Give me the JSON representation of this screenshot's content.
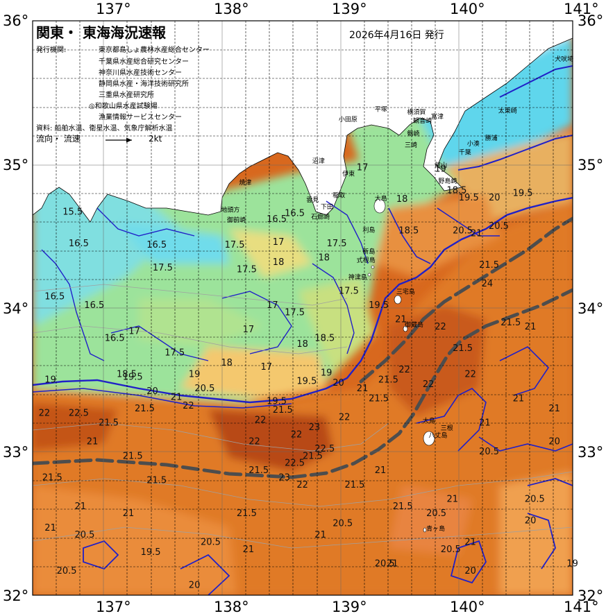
{
  "title": "関東・ 東海海況速報",
  "issue_date": "2026年4月16日 発行",
  "agencies_label": "発行機関:",
  "agencies": [
    "東京都島しょ農林水産総合センター",
    "千葉県水産総合研究センター",
    "神奈川県水産技術センター",
    "静岡県水産・海洋技術研究所",
    "三重県水産研究所",
    "◎和歌山県水産試験場",
    "漁業情報サービスセンター"
  ],
  "sources": "資料: 船舶水温、衛星水温、気象庁解析水温",
  "flow_label": "流向・ 流速",
  "flow_scale": "2kt",
  "lon_labels": [
    "137°",
    "138°",
    "139°",
    "140°",
    "141°"
  ],
  "lat_labels": [
    "36°",
    "35°",
    "34°",
    "33°",
    "32°"
  ],
  "places": [
    {
      "name": "犬吠埼",
      "lon": 140.85,
      "lat": 35.72
    },
    {
      "name": "太東崎",
      "lon": 140.38,
      "lat": 35.36
    },
    {
      "name": "勝浦",
      "lon": 140.27,
      "lat": 35.17
    },
    {
      "name": "小湊",
      "lon": 140.12,
      "lat": 35.13
    },
    {
      "name": "富津",
      "lon": 139.82,
      "lat": 35.32
    },
    {
      "name": "千葉",
      "lon": 140.05,
      "lat": 35.07
    },
    {
      "name": "館山",
      "lon": 139.85,
      "lat": 34.98
    },
    {
      "name": "野島崎",
      "lon": 139.88,
      "lat": 34.87
    },
    {
      "name": "横須賀",
      "lon": 139.62,
      "lat": 35.35
    },
    {
      "name": "観音崎",
      "lon": 139.67,
      "lat": 35.29
    },
    {
      "name": "剱崎",
      "lon": 139.62,
      "lat": 35.2
    },
    {
      "name": "三崎",
      "lon": 139.6,
      "lat": 35.12
    },
    {
      "name": "平塚",
      "lon": 139.35,
      "lat": 35.37
    },
    {
      "name": "小田原",
      "lon": 139.05,
      "lat": 35.3
    },
    {
      "name": "伊東",
      "lon": 139.08,
      "lat": 34.92
    },
    {
      "name": "稲取",
      "lon": 139.0,
      "lat": 34.77
    },
    {
      "name": "下田",
      "lon": 138.9,
      "lat": 34.69
    },
    {
      "name": "雲見",
      "lon": 138.78,
      "lat": 34.74
    },
    {
      "name": "石廊崎",
      "lon": 138.82,
      "lat": 34.62
    },
    {
      "name": "大島",
      "lon": 139.35,
      "lat": 34.75
    },
    {
      "name": "沼津",
      "lon": 138.83,
      "lat": 35.01
    },
    {
      "name": "焼津",
      "lon": 138.22,
      "lat": 34.86
    },
    {
      "name": "地頭方",
      "lon": 138.07,
      "lat": 34.67
    },
    {
      "name": "御前崎",
      "lon": 138.12,
      "lat": 34.6
    },
    {
      "name": "利島",
      "lon": 139.25,
      "lat": 34.53
    },
    {
      "name": "新島",
      "lon": 139.25,
      "lat": 34.38
    },
    {
      "name": "式根島",
      "lon": 139.2,
      "lat": 34.32
    },
    {
      "name": "神津島",
      "lon": 139.13,
      "lat": 34.2
    },
    {
      "name": "三宅島",
      "lon": 139.53,
      "lat": 34.1
    },
    {
      "name": "御蔵島",
      "lon": 139.6,
      "lat": 33.87
    },
    {
      "name": "八丈島",
      "lon": 139.8,
      "lat": 33.1
    },
    {
      "name": "大鳥",
      "lon": 139.75,
      "lat": 33.2
    },
    {
      "name": "三根",
      "lon": 139.9,
      "lat": 33.15
    },
    {
      "name": "青ヶ島",
      "lon": 139.78,
      "lat": 32.45
    }
  ],
  "contour_labels": [
    {
      "t": "15.5",
      "lon": 136.75,
      "lat": 34.65
    },
    {
      "t": "16.5",
      "lon": 136.6,
      "lat": 34.06
    },
    {
      "t": "16.5",
      "lon": 136.8,
      "lat": 34.43
    },
    {
      "t": "16.5",
      "lon": 136.93,
      "lat": 34.0
    },
    {
      "t": "16.5",
      "lon": 137.45,
      "lat": 34.42
    },
    {
      "t": "17",
      "lon": 137.3,
      "lat": 33.82
    },
    {
      "t": "16.5",
      "lon": 137.1,
      "lat": 33.77
    },
    {
      "t": "17.5",
      "lon": 137.5,
      "lat": 34.26
    },
    {
      "t": "17.5",
      "lon": 138.1,
      "lat": 34.42
    },
    {
      "t": "17.5",
      "lon": 138.2,
      "lat": 34.25
    },
    {
      "t": "17",
      "lon": 138.25,
      "lat": 33.83
    },
    {
      "t": "17",
      "lon": 138.45,
      "lat": 34.0
    },
    {
      "t": "17.5",
      "lon": 138.6,
      "lat": 33.95
    },
    {
      "t": "18",
      "lon": 138.5,
      "lat": 34.3
    },
    {
      "t": "17",
      "lon": 138.5,
      "lat": 34.44
    },
    {
      "t": "16.5",
      "lon": 138.45,
      "lat": 34.6
    },
    {
      "t": "16.5",
      "lon": 138.6,
      "lat": 34.64
    },
    {
      "t": "17.5",
      "lon": 138.95,
      "lat": 34.43
    },
    {
      "t": "18",
      "lon": 138.88,
      "lat": 34.33
    },
    {
      "t": "17.5",
      "lon": 139.05,
      "lat": 34.1
    },
    {
      "t": "17",
      "lon": 139.2,
      "lat": 34.96
    },
    {
      "t": "18",
      "lon": 139.53,
      "lat": 34.74
    },
    {
      "t": "18.5",
      "lon": 139.55,
      "lat": 34.52
    },
    {
      "t": "18",
      "lon": 138.7,
      "lat": 33.73
    },
    {
      "t": "18.5",
      "lon": 138.85,
      "lat": 33.77
    },
    {
      "t": "17.5",
      "lon": 137.6,
      "lat": 33.67
    },
    {
      "t": "18",
      "lon": 138.07,
      "lat": 33.6
    },
    {
      "t": "17",
      "lon": 138.4,
      "lat": 33.57
    },
    {
      "t": "18.5",
      "lon": 137.2,
      "lat": 33.52
    },
    {
      "t": "19.5",
      "lon": 137.25,
      "lat": 33.5
    },
    {
      "t": "19",
      "lon": 137.8,
      "lat": 33.52
    },
    {
      "t": "19.5",
      "lon": 138.7,
      "lat": 33.47
    },
    {
      "t": "19",
      "lon": 138.9,
      "lat": 33.53
    },
    {
      "t": "20",
      "lon": 139.0,
      "lat": 33.46
    },
    {
      "t": "19.5",
      "lon": 139.3,
      "lat": 34.0
    },
    {
      "t": "19",
      "lon": 136.6,
      "lat": 33.48
    },
    {
      "t": "20",
      "lon": 137.45,
      "lat": 33.4
    },
    {
      "t": "20.5",
      "lon": 137.85,
      "lat": 33.42
    },
    {
      "t": "21",
      "lon": 137.65,
      "lat": 33.36
    },
    {
      "t": "22",
      "lon": 137.75,
      "lat": 33.3
    },
    {
      "t": "21.5",
      "lon": 137.35,
      "lat": 33.28
    },
    {
      "t": "22",
      "lon": 136.55,
      "lat": 33.25
    },
    {
      "t": "22.5",
      "lon": 136.8,
      "lat": 33.25
    },
    {
      "t": "21.5",
      "lon": 137.05,
      "lat": 33.18
    },
    {
      "t": "19.5",
      "lon": 138.45,
      "lat": 33.33
    },
    {
      "t": "21.5",
      "lon": 138.5,
      "lat": 33.27
    },
    {
      "t": "22",
      "lon": 138.35,
      "lat": 33.2
    },
    {
      "t": "22",
      "lon": 138.3,
      "lat": 33.05
    },
    {
      "t": "23",
      "lon": 138.8,
      "lat": 33.15
    },
    {
      "t": "22",
      "lon": 139.05,
      "lat": 33.22
    },
    {
      "t": "21.5",
      "lon": 139.3,
      "lat": 33.35
    },
    {
      "t": "21",
      "lon": 139.2,
      "lat": 33.42
    },
    {
      "t": "21.5",
      "lon": 139.38,
      "lat": 33.48
    },
    {
      "t": "22",
      "lon": 139.55,
      "lat": 33.55
    },
    {
      "t": "21",
      "lon": 139.52,
      "lat": 33.9
    },
    {
      "t": "22",
      "lon": 139.85,
      "lat": 33.85
    },
    {
      "t": "22",
      "lon": 139.75,
      "lat": 33.45
    },
    {
      "t": "22",
      "lon": 140.1,
      "lat": 33.52
    },
    {
      "t": "21.5",
      "lon": 140.0,
      "lat": 33.7
    },
    {
      "t": "24",
      "lon": 140.24,
      "lat": 34.15
    },
    {
      "t": "21.5",
      "lon": 140.22,
      "lat": 34.28
    },
    {
      "t": "20.5",
      "lon": 140.0,
      "lat": 34.52
    },
    {
      "t": "21",
      "lon": 140.15,
      "lat": 34.5
    },
    {
      "t": "21.5",
      "lon": 140.4,
      "lat": 33.88
    },
    {
      "t": "21",
      "lon": 140.5,
      "lat": 33.35
    },
    {
      "t": "21",
      "lon": 140.6,
      "lat": 33.85
    },
    {
      "t": "21",
      "lon": 140.8,
      "lat": 33.28
    },
    {
      "t": "20",
      "lon": 140.8,
      "lat": 33.05
    },
    {
      "t": "20.5",
      "lon": 140.22,
      "lat": 32.98
    },
    {
      "t": "21",
      "lon": 140.22,
      "lat": 33.18
    },
    {
      "t": "20.5",
      "lon": 140.6,
      "lat": 32.65
    },
    {
      "t": "20",
      "lon": 140.6,
      "lat": 32.5
    },
    {
      "t": "19",
      "lon": 140.95,
      "lat": 32.2
    },
    {
      "t": "21",
      "lon": 140.1,
      "lat": 32.35
    },
    {
      "t": "20.5",
      "lon": 139.9,
      "lat": 32.3
    },
    {
      "t": "20",
      "lon": 140.1,
      "lat": 32.15
    },
    {
      "t": "21",
      "lon": 139.95,
      "lat": 32.65
    },
    {
      "t": "20.5",
      "lon": 139.78,
      "lat": 32.55
    },
    {
      "t": "21.5",
      "lon": 139.5,
      "lat": 32.6
    },
    {
      "t": "21",
      "lon": 139.45,
      "lat": 32.2
    },
    {
      "t": "20.5",
      "lon": 139.35,
      "lat": 32.2
    },
    {
      "t": "20.5",
      "lon": 139.0,
      "lat": 32.48
    },
    {
      "t": "21",
      "lon": 138.85,
      "lat": 32.4
    },
    {
      "t": "21.5",
      "lon": 139.1,
      "lat": 32.75
    },
    {
      "t": "21",
      "lon": 139.35,
      "lat": 32.85
    },
    {
      "t": "22",
      "lon": 138.7,
      "lat": 32.75
    },
    {
      "t": "21.5",
      "lon": 138.75,
      "lat": 32.95
    },
    {
      "t": "21.5",
      "lon": 138.3,
      "lat": 32.85
    },
    {
      "t": "21.5",
      "lon": 138.2,
      "lat": 32.55
    },
    {
      "t": "21",
      "lon": 138.25,
      "lat": 32.3
    },
    {
      "t": "20.5",
      "lon": 137.9,
      "lat": 32.35
    },
    {
      "t": "20",
      "lon": 137.8,
      "lat": 32.05
    },
    {
      "t": "19.5",
      "lon": 137.4,
      "lat": 32.28
    },
    {
      "t": "20.5",
      "lon": 136.85,
      "lat": 32.4
    },
    {
      "t": "21",
      "lon": 137.25,
      "lat": 32.55
    },
    {
      "t": "21",
      "lon": 136.85,
      "lat": 32.6
    },
    {
      "t": "21",
      "lon": 136.6,
      "lat": 32.45
    },
    {
      "t": "20.5",
      "lon": 136.7,
      "lat": 32.15
    },
    {
      "t": "21.5",
      "lon": 136.58,
      "lat": 32.8
    },
    {
      "t": "21.5",
      "lon": 137.45,
      "lat": 32.78
    },
    {
      "t": "21.5",
      "lon": 137.25,
      "lat": 32.95
    },
    {
      "t": "21",
      "lon": 136.95,
      "lat": 33.05
    },
    {
      "t": "22.5",
      "lon": 138.6,
      "lat": 32.9
    },
    {
      "t": "22",
      "lon": 138.65,
      "lat": 33.1
    },
    {
      "t": "23",
      "lon": 138.55,
      "lat": 32.8
    },
    {
      "t": "22.5",
      "lon": 138.85,
      "lat": 33.0
    },
    {
      "t": "19",
      "lon": 139.85,
      "lat": 34.95
    },
    {
      "t": "19.5",
      "lon": 140.05,
      "lat": 34.75
    },
    {
      "t": "20",
      "lon": 140.3,
      "lat": 34.75
    },
    {
      "t": "20.5",
      "lon": 140.3,
      "lat": 34.55
    },
    {
      "t": "19.5",
      "lon": 140.5,
      "lat": 34.78
    },
    {
      "t": "18.5",
      "lon": 139.95,
      "lat": 34.8
    }
  ],
  "colors": {
    "c15": "#62dcef",
    "c16": "#7ae2e6",
    "c165": "#90e2b8",
    "c17": "#9ce39b",
    "c175": "#b6e38a",
    "c18": "#d2e27e",
    "c185": "#eedc86",
    "c19": "#f5c876",
    "c195": "#f0b060",
    "c20": "#eea064",
    "c205": "#e88a3e",
    "c21": "#e27c28",
    "c215": "#dc7222",
    "c22": "#d2661c",
    "c225": "#c45418",
    "c23": "#b84a18",
    "land": "#ffffff",
    "kuroshio": "#4d4d4d",
    "contour": "#2020c8"
  }
}
